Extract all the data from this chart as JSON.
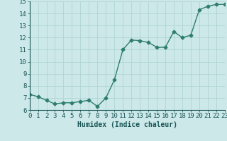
{
  "x": [
    0,
    1,
    2,
    3,
    4,
    5,
    6,
    7,
    8,
    9,
    10,
    11,
    12,
    13,
    14,
    15,
    16,
    17,
    18,
    19,
    20,
    21,
    22,
    23
  ],
  "y": [
    7.3,
    7.1,
    6.8,
    6.5,
    6.6,
    6.6,
    6.7,
    6.8,
    6.3,
    7.0,
    8.5,
    11.0,
    11.8,
    11.75,
    11.6,
    11.2,
    11.2,
    12.5,
    12.0,
    12.2,
    14.3,
    14.6,
    14.75,
    14.75
  ],
  "xlim": [
    0,
    23
  ],
  "ylim": [
    6,
    15
  ],
  "yticks": [
    6,
    7,
    8,
    9,
    10,
    11,
    12,
    13,
    14,
    15
  ],
  "xticks": [
    0,
    1,
    2,
    3,
    4,
    5,
    6,
    7,
    8,
    9,
    10,
    11,
    12,
    13,
    14,
    15,
    16,
    17,
    18,
    19,
    20,
    21,
    22,
    23
  ],
  "xlabel": "Humidex (Indice chaleur)",
  "line_color": "#2e7d6e",
  "marker": "D",
  "marker_size": 2.5,
  "bg_color": "#cce8e8",
  "grid_color": "#b0d4d4",
  "line_width": 1.0,
  "xlabel_fontsize": 7,
  "tick_fontsize": 6.5
}
